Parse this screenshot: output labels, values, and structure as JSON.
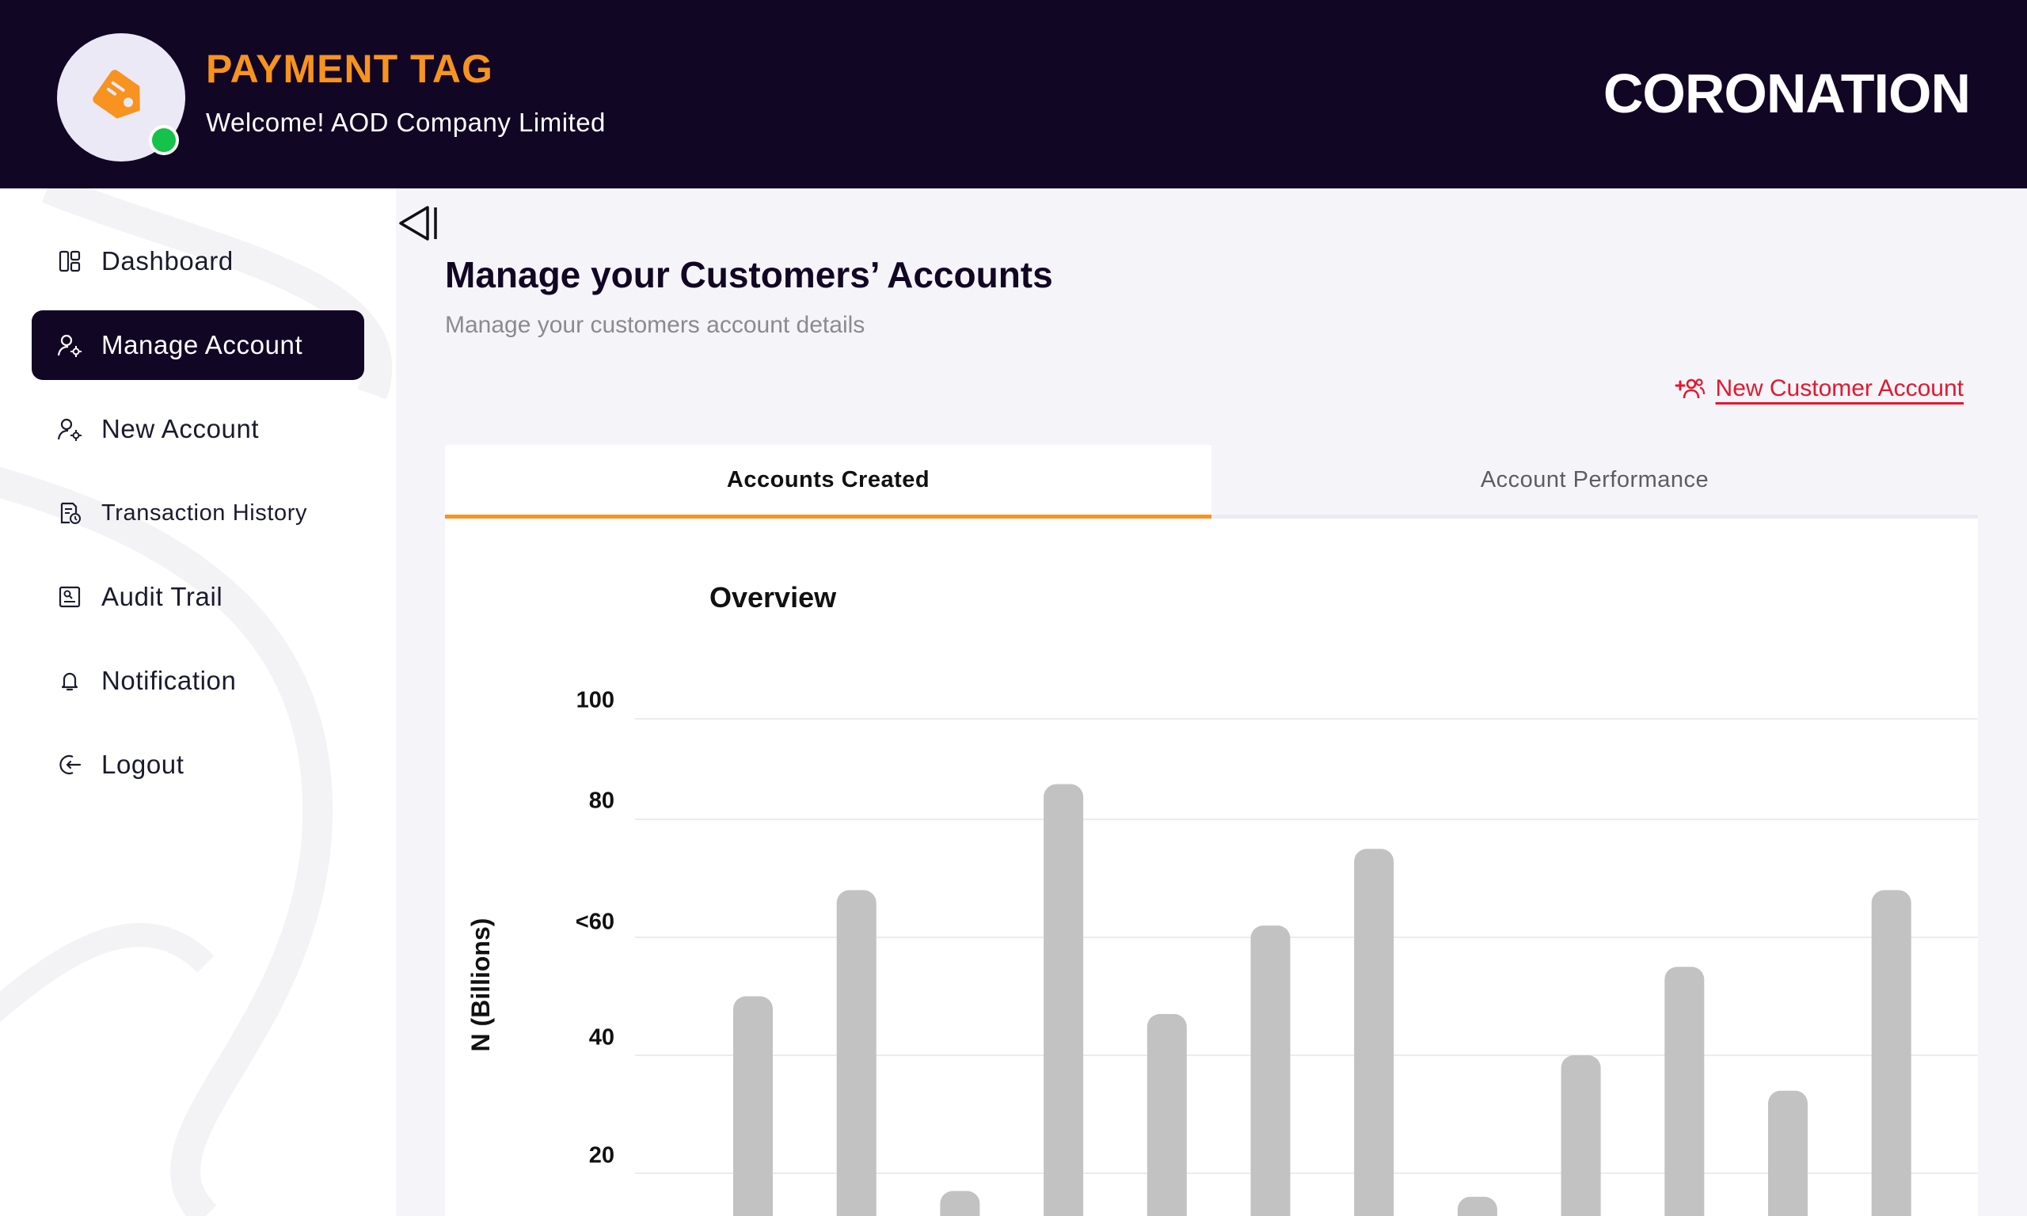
{
  "header": {
    "brand_title": "PAYMENT TAG",
    "welcome": "Welcome! AOD Company Limited",
    "bank_logo": "CORONATION",
    "logo_icon": "price-tag-icon",
    "status_color": "#15c24a"
  },
  "sidebar": {
    "items": [
      {
        "label": "Dashboard",
        "icon": "dashboard-icon"
      },
      {
        "label": "Manage Account",
        "icon": "user-gear-icon",
        "active": true
      },
      {
        "label": "New Account",
        "icon": "user-gear-icon"
      },
      {
        "label": "Transaction History",
        "icon": "document-clock-icon"
      },
      {
        "label": "Audit Trail",
        "icon": "audit-icon"
      },
      {
        "label": "Notification",
        "icon": "bell-icon"
      },
      {
        "label": "Logout",
        "icon": "logout-icon"
      }
    ]
  },
  "main": {
    "title": "Manage your Customers’ Accounts",
    "subtitle": "Manage your customers account details",
    "new_customer_label": "New Customer Account",
    "tabs": [
      {
        "label": "Accounts Created",
        "active": true
      },
      {
        "label": "Account Performance",
        "active": false
      }
    ]
  },
  "colors": {
    "header_bg": "#120625",
    "accent": "#f7931e",
    "danger": "#e3172f",
    "bar": "#c2c2c2"
  },
  "chart_data": {
    "type": "bar",
    "title": "Overview",
    "ylabel": "N (Billions)",
    "xlabel": "",
    "y_ticks": [
      "100",
      "80",
      "<60",
      "40",
      "20"
    ],
    "values": [
      50,
      68,
      17,
      87,
      47,
      62,
      75,
      16,
      40,
      55,
      34,
      68
    ],
    "grid": true
  }
}
